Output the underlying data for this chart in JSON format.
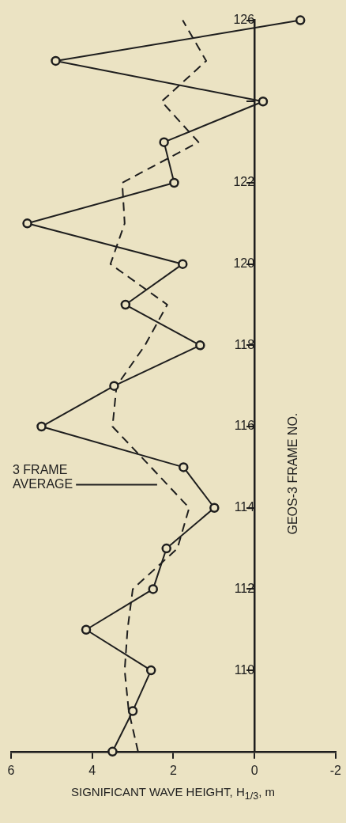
{
  "chart_data": {
    "type": "line",
    "orientation": "horizontal",
    "xlabel": "SIGNIFICANT WAVE HEIGHT, H$_{1/3}$, m",
    "ylabel": "GEOS-3 FRAME NO.",
    "xlim": [
      6,
      -2
    ],
    "xticks": [
      6,
      4,
      2,
      0,
      -2
    ],
    "ylim": [
      108,
      126
    ],
    "yticks": [
      110,
      112,
      114,
      116,
      118,
      120,
      122,
      {
        "value": 124,
        "label": null
      },
      126
    ],
    "marker": "circle",
    "grid": false,
    "legend": false,
    "annotations": [
      "3 FRAME AVERAGE"
    ],
    "series": [
      {
        "color": "#1e1e1e",
        "x": [
          108,
          109,
          110,
          111,
          112,
          113,
          114,
          115,
          116,
          117,
          118,
          119,
          120,
          121,
          122,
          123,
          124,
          125,
          126
        ],
        "values": [
          3.5,
          3.0,
          2.55,
          4.15,
          2.5,
          2.17,
          0.99,
          1.75,
          5.25,
          3.46,
          1.34,
          3.18,
          1.77,
          5.6,
          1.98,
          2.23,
          -0.21,
          4.9,
          -1.13
        ]
      },
      {
        "color": "#1e1e1e",
        "marker": "none",
        "line_style": "dashed",
        "x": [
          108,
          109,
          110,
          111,
          112,
          113,
          114,
          115,
          116,
          117,
          118,
          119,
          120,
          121,
          122,
          123,
          124,
          125,
          126
        ],
        "values": [
          2.87,
          3.1,
          3.2,
          3.13,
          3.0,
          1.9,
          1.61,
          2.55,
          3.5,
          3.4,
          2.7,
          2.15,
          3.55,
          3.2,
          3.26,
          1.38,
          2.29,
          1.19,
          1.77
        ]
      }
    ]
  }
}
